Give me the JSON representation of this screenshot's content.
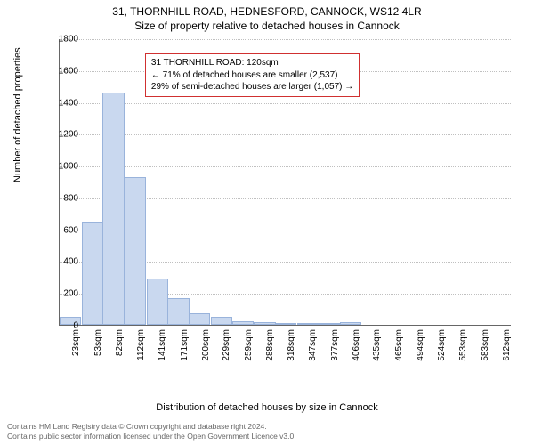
{
  "title_line1": "31, THORNHILL ROAD, HEDNESFORD, CANNOCK, WS12 4LR",
  "title_line2": "Size of property relative to detached houses in Cannock",
  "ylabel": "Number of detached properties",
  "xlabel": "Distribution of detached houses by size in Cannock",
  "annotation": {
    "line1": "31 THORNHILL ROAD: 120sqm",
    "line2": "← 71% of detached houses are smaller (2,537)",
    "line3": "29% of semi-detached houses are larger (1,057) →"
  },
  "footer_line1": "Contains HM Land Registry data © Crown copyright and database right 2024.",
  "footer_line2": "Contains public sector information licensed under the Open Government Licence v3.0.",
  "chart": {
    "type": "histogram",
    "background_color": "#ffffff",
    "bar_fill": "#c9d8ef",
    "bar_border": "#99b3db",
    "grid_color": "#c0c0c0",
    "axis_color": "#666666",
    "marker_line_color": "#d03030",
    "annotation_border": "#d03030",
    "title_fontsize": 12,
    "label_fontsize": 11,
    "tick_fontsize": 10,
    "ylim": [
      0,
      1800
    ],
    "ytick_step": 200,
    "yticks": [
      0,
      200,
      400,
      600,
      800,
      1000,
      1200,
      1400,
      1600,
      1800
    ],
    "xlim": [
      8,
      627
    ],
    "xticks": [
      {
        "pos": 23,
        "label": "23sqm"
      },
      {
        "pos": 53,
        "label": "53sqm"
      },
      {
        "pos": 82,
        "label": "82sqm"
      },
      {
        "pos": 112,
        "label": "112sqm"
      },
      {
        "pos": 141,
        "label": "141sqm"
      },
      {
        "pos": 171,
        "label": "171sqm"
      },
      {
        "pos": 200,
        "label": "200sqm"
      },
      {
        "pos": 229,
        "label": "229sqm"
      },
      {
        "pos": 259,
        "label": "259sqm"
      },
      {
        "pos": 288,
        "label": "288sqm"
      },
      {
        "pos": 318,
        "label": "318sqm"
      },
      {
        "pos": 347,
        "label": "347sqm"
      },
      {
        "pos": 377,
        "label": "377sqm"
      },
      {
        "pos": 406,
        "label": "406sqm"
      },
      {
        "pos": 435,
        "label": "435sqm"
      },
      {
        "pos": 465,
        "label": "465sqm"
      },
      {
        "pos": 494,
        "label": "494sqm"
      },
      {
        "pos": 524,
        "label": "524sqm"
      },
      {
        "pos": 553,
        "label": "553sqm"
      },
      {
        "pos": 583,
        "label": "583sqm"
      },
      {
        "pos": 612,
        "label": "612sqm"
      }
    ],
    "marker_x": 120,
    "bar_width": 29.5,
    "bars": [
      {
        "x0": 8,
        "value": 50
      },
      {
        "x0": 38,
        "value": 650
      },
      {
        "x0": 67,
        "value": 1460
      },
      {
        "x0": 97,
        "value": 930
      },
      {
        "x0": 127,
        "value": 290
      },
      {
        "x0": 156,
        "value": 170
      },
      {
        "x0": 185,
        "value": 70
      },
      {
        "x0": 215,
        "value": 50
      },
      {
        "x0": 244,
        "value": 25
      },
      {
        "x0": 274,
        "value": 15
      },
      {
        "x0": 303,
        "value": 12
      },
      {
        "x0": 333,
        "value": 12
      },
      {
        "x0": 362,
        "value": 10
      },
      {
        "x0": 392,
        "value": 15
      },
      {
        "x0": 421,
        "value": 0
      },
      {
        "x0": 450,
        "value": 0
      },
      {
        "x0": 480,
        "value": 0
      },
      {
        "x0": 509,
        "value": 0
      },
      {
        "x0": 539,
        "value": 0
      },
      {
        "x0": 568,
        "value": 0
      },
      {
        "x0": 598,
        "value": 0
      }
    ]
  }
}
